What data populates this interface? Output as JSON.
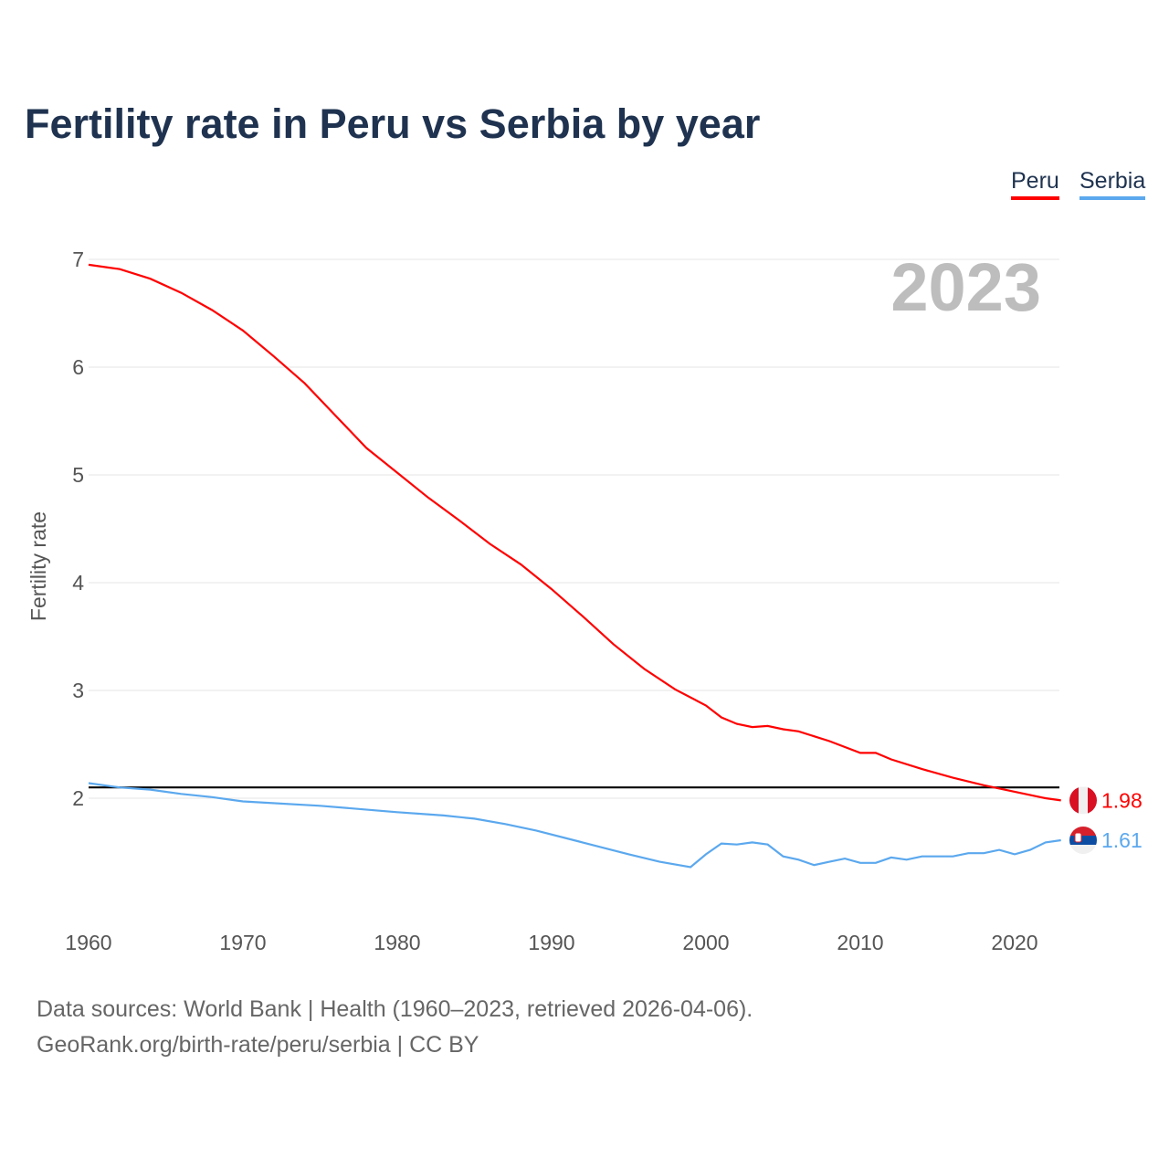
{
  "chart_data": {
    "type": "line",
    "title": "Fertility rate in Peru vs Serbia by year",
    "ylabel": "Fertility rate",
    "xlabel": "",
    "ylim": [
      1.0,
      7.0
    ],
    "xlim": [
      1960,
      2023
    ],
    "yticks": [
      2,
      3,
      4,
      5,
      6,
      7
    ],
    "xticks": [
      1960,
      1970,
      1980,
      1990,
      2000,
      2010,
      2020
    ],
    "grid": true,
    "legend_position": "top-right",
    "year_label": "2023",
    "reference_line": 2.1,
    "series": [
      {
        "name": "Peru",
        "color": "#ff0000",
        "end_label": "1.98",
        "x": [
          1960,
          1962,
          1964,
          1966,
          1968,
          1970,
          1972,
          1974,
          1976,
          1978,
          1980,
          1982,
          1984,
          1986,
          1988,
          1990,
          1992,
          1994,
          1996,
          1998,
          2000,
          2001,
          2002,
          2003,
          2004,
          2005,
          2006,
          2008,
          2010,
          2011,
          2012,
          2014,
          2016,
          2018,
          2020,
          2022,
          2023
        ],
        "values": [
          6.95,
          6.91,
          6.82,
          6.69,
          6.53,
          6.34,
          6.1,
          5.85,
          5.55,
          5.25,
          5.02,
          4.79,
          4.58,
          4.36,
          4.17,
          3.94,
          3.69,
          3.43,
          3.2,
          3.01,
          2.86,
          2.75,
          2.69,
          2.66,
          2.67,
          2.64,
          2.62,
          2.53,
          2.42,
          2.42,
          2.36,
          2.27,
          2.19,
          2.12,
          2.06,
          2.0,
          1.98
        ]
      },
      {
        "name": "Serbia",
        "color": "#5ba8ee",
        "end_label": "1.61",
        "x": [
          1960,
          1962,
          1964,
          1966,
          1968,
          1970,
          1975,
          1980,
          1983,
          1985,
          1987,
          1989,
          1992,
          1995,
          1997,
          1999,
          2000,
          2001,
          2002,
          2003,
          2004,
          2005,
          2006,
          2007,
          2008,
          2009,
          2010,
          2011,
          2012,
          2013,
          2014,
          2016,
          2017,
          2018,
          2019,
          2020,
          2021,
          2022,
          2023
        ],
        "values": [
          2.14,
          2.1,
          2.08,
          2.04,
          2.01,
          1.97,
          1.93,
          1.87,
          1.84,
          1.81,
          1.76,
          1.7,
          1.59,
          1.48,
          1.41,
          1.36,
          1.48,
          1.58,
          1.57,
          1.59,
          1.57,
          1.46,
          1.43,
          1.38,
          1.41,
          1.44,
          1.4,
          1.4,
          1.45,
          1.43,
          1.46,
          1.46,
          1.49,
          1.49,
          1.52,
          1.48,
          1.52,
          1.59,
          1.61
        ]
      }
    ]
  },
  "footer": {
    "line1": "Data sources: World Bank | Health (1960–2023, retrieved 2026-04-06).",
    "line2": "GeoRank.org/birth-rate/peru/serbia | CC BY"
  }
}
